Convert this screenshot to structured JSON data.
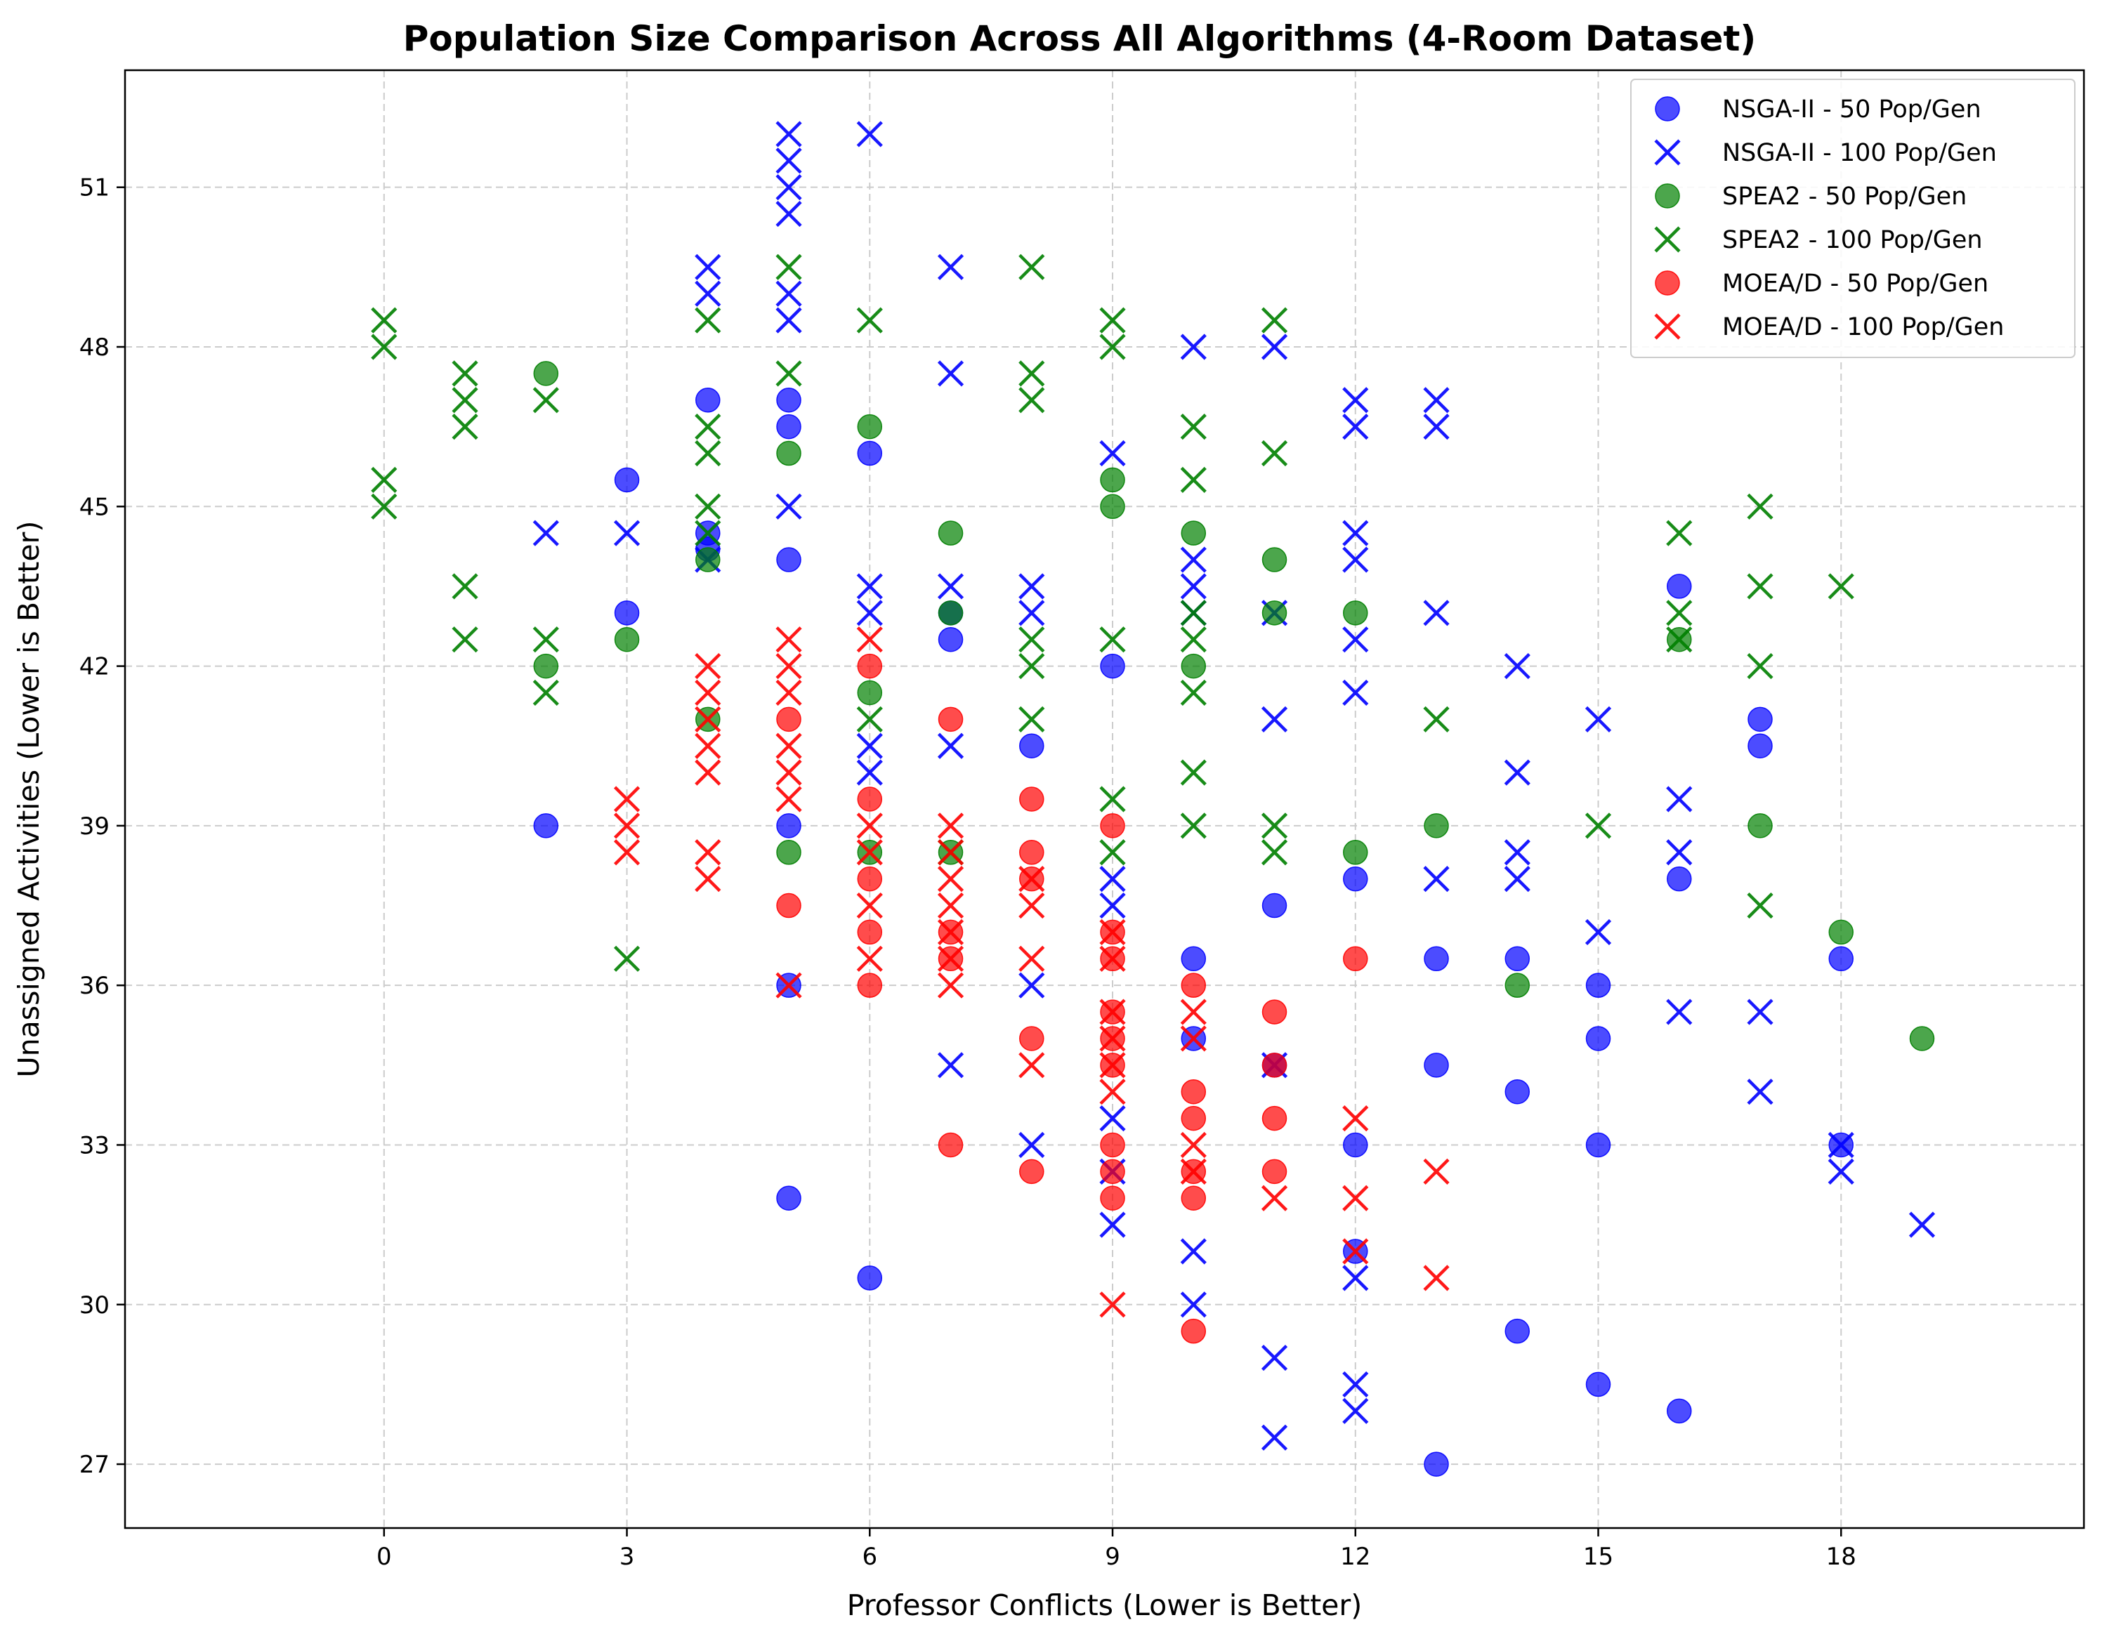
{
  "chart_data": {
    "type": "scatter",
    "title": "Population Size Comparison Across All Algorithms (4-Room Dataset)",
    "xlabel": "Professor Conflicts (Lower is Better)",
    "ylabel": "Unassigned Activities (Lower is Better)",
    "xlim": [
      -3.2,
      21.0
    ],
    "ylim": [
      25.8,
      53.2
    ],
    "xticks": [
      0,
      3,
      6,
      9,
      12,
      15,
      18
    ],
    "yticks": [
      27,
      30,
      33,
      36,
      39,
      42,
      45,
      48,
      51
    ],
    "grid": true,
    "legend_position": "top-right",
    "series": [
      {
        "name": "NSGA-II - 50 Pop/Gen",
        "marker": "circle",
        "color": "#0000ff",
        "points": [
          [
            2,
            39
          ],
          [
            3,
            45.5
          ],
          [
            3,
            43
          ],
          [
            4,
            47
          ],
          [
            4,
            44.5
          ],
          [
            4,
            44.2
          ],
          [
            5,
            47
          ],
          [
            5,
            46.5
          ],
          [
            5,
            44
          ],
          [
            5,
            39
          ],
          [
            5,
            36
          ],
          [
            5,
            32
          ],
          [
            6,
            46
          ],
          [
            6,
            30.5
          ],
          [
            7,
            43
          ],
          [
            7,
            42.5
          ],
          [
            8,
            40.5
          ],
          [
            9,
            42
          ],
          [
            10,
            36.5
          ],
          [
            10,
            35
          ],
          [
            11,
            37.5
          ],
          [
            11,
            34.5
          ],
          [
            12,
            38
          ],
          [
            12,
            33
          ],
          [
            12,
            31
          ],
          [
            13,
            36.5
          ],
          [
            13,
            34.5
          ],
          [
            13,
            27
          ],
          [
            14,
            36.5
          ],
          [
            14,
            34
          ],
          [
            14,
            29.5
          ],
          [
            15,
            36
          ],
          [
            15,
            35
          ],
          [
            15,
            33
          ],
          [
            15,
            28.5
          ],
          [
            16,
            43.5
          ],
          [
            16,
            38
          ],
          [
            16,
            28
          ],
          [
            17,
            41
          ],
          [
            17,
            40.5
          ],
          [
            18,
            36.5
          ],
          [
            18,
            33
          ]
        ]
      },
      {
        "name": "NSGA-II - 100 Pop/Gen",
        "marker": "x",
        "color": "#0000ff",
        "points": [
          [
            2,
            44.5
          ],
          [
            3,
            44.5
          ],
          [
            4,
            49.5
          ],
          [
            4,
            49
          ],
          [
            4,
            44
          ],
          [
            5,
            52
          ],
          [
            5,
            51.5
          ],
          [
            5,
            51
          ],
          [
            5,
            50.5
          ],
          [
            5,
            49
          ],
          [
            5,
            48.5
          ],
          [
            5,
            45
          ],
          [
            6,
            52
          ],
          [
            6,
            43.5
          ],
          [
            6,
            43
          ],
          [
            6,
            40.5
          ],
          [
            6,
            40
          ],
          [
            7,
            49.5
          ],
          [
            7,
            47.5
          ],
          [
            7,
            43.5
          ],
          [
            7,
            40.5
          ],
          [
            7,
            34.5
          ],
          [
            8,
            43.5
          ],
          [
            8,
            43
          ],
          [
            8,
            36
          ],
          [
            8,
            33
          ],
          [
            9,
            46
          ],
          [
            9,
            38
          ],
          [
            9,
            37.5
          ],
          [
            9,
            33.5
          ],
          [
            9,
            32.5
          ],
          [
            9,
            31.5
          ],
          [
            10,
            48
          ],
          [
            10,
            44
          ],
          [
            10,
            43.5
          ],
          [
            10,
            43
          ],
          [
            10,
            31
          ],
          [
            10,
            30
          ],
          [
            11,
            48
          ],
          [
            11,
            43
          ],
          [
            11,
            41
          ],
          [
            11,
            34.5
          ],
          [
            11,
            29
          ],
          [
            11,
            27.5
          ],
          [
            12,
            47
          ],
          [
            12,
            46.5
          ],
          [
            12,
            44.5
          ],
          [
            12,
            44
          ],
          [
            12,
            42.5
          ],
          [
            12,
            41.5
          ],
          [
            12,
            30.5
          ],
          [
            12,
            28.5
          ],
          [
            12,
            28
          ],
          [
            13,
            47
          ],
          [
            13,
            46.5
          ],
          [
            13,
            43
          ],
          [
            13,
            38
          ],
          [
            14,
            42
          ],
          [
            14,
            40
          ],
          [
            14,
            38.5
          ],
          [
            14,
            38
          ],
          [
            15,
            41
          ],
          [
            15,
            37
          ],
          [
            16,
            39.5
          ],
          [
            16,
            38.5
          ],
          [
            16,
            35.5
          ],
          [
            17,
            35.5
          ],
          [
            17,
            34
          ],
          [
            18,
            33
          ],
          [
            18,
            32.5
          ],
          [
            19,
            31.5
          ]
        ]
      },
      {
        "name": "SPEA2 - 50 Pop/Gen",
        "marker": "circle",
        "color": "#008000",
        "points": [
          [
            2,
            47.5
          ],
          [
            2,
            42
          ],
          [
            3,
            42.5
          ],
          [
            4,
            44
          ],
          [
            4,
            41
          ],
          [
            5,
            46
          ],
          [
            5,
            38.5
          ],
          [
            6,
            46.5
          ],
          [
            6,
            41.5
          ],
          [
            6,
            38.5
          ],
          [
            7,
            44.5
          ],
          [
            7,
            43
          ],
          [
            7,
            38.5
          ],
          [
            9,
            45.5
          ],
          [
            9,
            45
          ],
          [
            10,
            44.5
          ],
          [
            10,
            42
          ],
          [
            11,
            44
          ],
          [
            11,
            43
          ],
          [
            12,
            43
          ],
          [
            12,
            38.5
          ],
          [
            13,
            39
          ],
          [
            14,
            36
          ],
          [
            16,
            42.5
          ],
          [
            17,
            39
          ],
          [
            18,
            37
          ],
          [
            19,
            35
          ]
        ]
      },
      {
        "name": "SPEA2 - 100 Pop/Gen",
        "marker": "x",
        "color": "#008000",
        "points": [
          [
            0,
            48.5
          ],
          [
            0,
            48
          ],
          [
            0,
            45.5
          ],
          [
            0,
            45
          ],
          [
            1,
            47.5
          ],
          [
            1,
            47
          ],
          [
            1,
            46.5
          ],
          [
            1,
            43.5
          ],
          [
            1,
            42.5
          ],
          [
            2,
            47
          ],
          [
            2,
            42.5
          ],
          [
            2,
            41.5
          ],
          [
            3,
            36.5
          ],
          [
            4,
            48.5
          ],
          [
            4,
            46.5
          ],
          [
            4,
            46
          ],
          [
            4,
            45
          ],
          [
            4,
            44.5
          ],
          [
            5,
            49.5
          ],
          [
            5,
            47.5
          ],
          [
            6,
            48.5
          ],
          [
            6,
            41
          ],
          [
            7,
            38.5
          ],
          [
            8,
            49.5
          ],
          [
            8,
            47.5
          ],
          [
            8,
            47
          ],
          [
            8,
            42.5
          ],
          [
            8,
            42
          ],
          [
            8,
            41
          ],
          [
            9,
            48.5
          ],
          [
            9,
            48
          ],
          [
            9,
            42.5
          ],
          [
            9,
            39.5
          ],
          [
            9,
            38.5
          ],
          [
            10,
            46.5
          ],
          [
            10,
            45.5
          ],
          [
            10,
            43
          ],
          [
            10,
            42.5
          ],
          [
            10,
            41.5
          ],
          [
            10,
            40
          ],
          [
            10,
            39
          ],
          [
            11,
            48.5
          ],
          [
            11,
            46
          ],
          [
            11,
            39
          ],
          [
            11,
            38.5
          ],
          [
            13,
            41
          ],
          [
            15,
            39
          ],
          [
            16,
            44.5
          ],
          [
            16,
            43
          ],
          [
            16,
            42.5
          ],
          [
            17,
            45
          ],
          [
            17,
            43.5
          ],
          [
            17,
            42
          ],
          [
            17,
            37.5
          ],
          [
            18,
            43.5
          ]
        ]
      },
      {
        "name": "MOEA/D - 50 Pop/Gen",
        "marker": "circle",
        "color": "#ff0000",
        "points": [
          [
            5,
            41
          ],
          [
            5,
            37.5
          ],
          [
            6,
            42
          ],
          [
            6,
            39.5
          ],
          [
            6,
            38
          ],
          [
            6,
            37
          ],
          [
            6,
            36
          ],
          [
            7,
            41
          ],
          [
            7,
            37
          ],
          [
            7,
            36.5
          ],
          [
            7,
            33
          ],
          [
            8,
            39.5
          ],
          [
            8,
            38.5
          ],
          [
            8,
            38
          ],
          [
            8,
            35
          ],
          [
            8,
            32.5
          ],
          [
            9,
            39
          ],
          [
            9,
            37
          ],
          [
            9,
            36.5
          ],
          [
            9,
            35.5
          ],
          [
            9,
            35
          ],
          [
            9,
            34.5
          ],
          [
            9,
            33
          ],
          [
            9,
            32.5
          ],
          [
            9,
            32
          ],
          [
            10,
            36
          ],
          [
            10,
            34
          ],
          [
            10,
            33.5
          ],
          [
            10,
            32.5
          ],
          [
            10,
            32
          ],
          [
            10,
            29.5
          ],
          [
            11,
            35.5
          ],
          [
            11,
            34.5
          ],
          [
            11,
            33.5
          ],
          [
            11,
            32.5
          ],
          [
            12,
            36.5
          ]
        ]
      },
      {
        "name": "MOEA/D - 100 Pop/Gen",
        "marker": "x",
        "color": "#ff0000",
        "points": [
          [
            3,
            39.5
          ],
          [
            3,
            39
          ],
          [
            3,
            38.5
          ],
          [
            4,
            42
          ],
          [
            4,
            41.5
          ],
          [
            4,
            41
          ],
          [
            4,
            40.5
          ],
          [
            4,
            40
          ],
          [
            4,
            38.5
          ],
          [
            4,
            38
          ],
          [
            5,
            42.5
          ],
          [
            5,
            42
          ],
          [
            5,
            41.5
          ],
          [
            5,
            40.5
          ],
          [
            5,
            40
          ],
          [
            5,
            39.5
          ],
          [
            5,
            36
          ],
          [
            6,
            42.5
          ],
          [
            6,
            39
          ],
          [
            6,
            38.5
          ],
          [
            6,
            37.5
          ],
          [
            6,
            36.5
          ],
          [
            7,
            39
          ],
          [
            7,
            38.5
          ],
          [
            7,
            38
          ],
          [
            7,
            37.5
          ],
          [
            7,
            37
          ],
          [
            7,
            36.5
          ],
          [
            7,
            36
          ],
          [
            8,
            38
          ],
          [
            8,
            37.5
          ],
          [
            8,
            36.5
          ],
          [
            8,
            34.5
          ],
          [
            9,
            37
          ],
          [
            9,
            36.5
          ],
          [
            9,
            35.5
          ],
          [
            9,
            35
          ],
          [
            9,
            34.5
          ],
          [
            9,
            34
          ],
          [
            9,
            30
          ],
          [
            10,
            35.5
          ],
          [
            10,
            35
          ],
          [
            10,
            33
          ],
          [
            10,
            32.5
          ],
          [
            11,
            32
          ],
          [
            12,
            33.5
          ],
          [
            12,
            32
          ],
          [
            12,
            31
          ],
          [
            13,
            32.5
          ],
          [
            13,
            30.5
          ]
        ]
      }
    ]
  }
}
